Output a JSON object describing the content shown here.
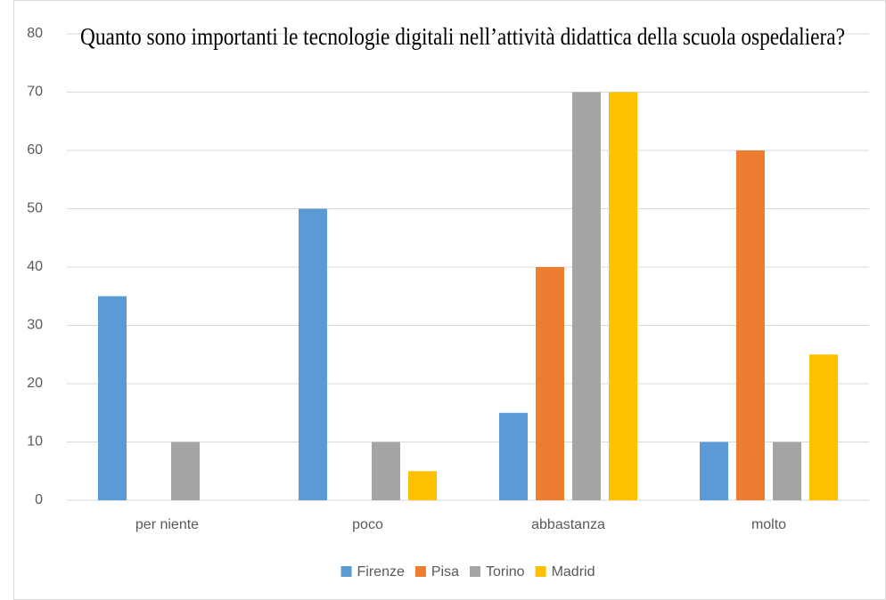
{
  "chart_data": {
    "type": "bar",
    "title": "Quanto sono importanti le tecnologie digitali nell’attività didattica della scuola ospedaliera?",
    "categories": [
      "per niente",
      "poco",
      "abbastanza",
      "molto"
    ],
    "series": [
      {
        "name": "Firenze",
        "color": "#5b9bd5",
        "values": [
          35,
          50,
          15,
          10
        ]
      },
      {
        "name": "Pisa",
        "color": "#ed7d31",
        "values": [
          0,
          0,
          40,
          60
        ]
      },
      {
        "name": "Torino",
        "color": "#a5a5a5",
        "values": [
          10,
          10,
          70,
          10
        ]
      },
      {
        "name": "Madrid",
        "color": "#ffc000",
        "values": [
          0,
          5,
          70,
          25
        ]
      }
    ],
    "ylim": [
      0,
      80
    ],
    "yticks": [
      0,
      10,
      20,
      30,
      40,
      50,
      60,
      70,
      80
    ],
    "grid": true,
    "legend": "bottom"
  }
}
